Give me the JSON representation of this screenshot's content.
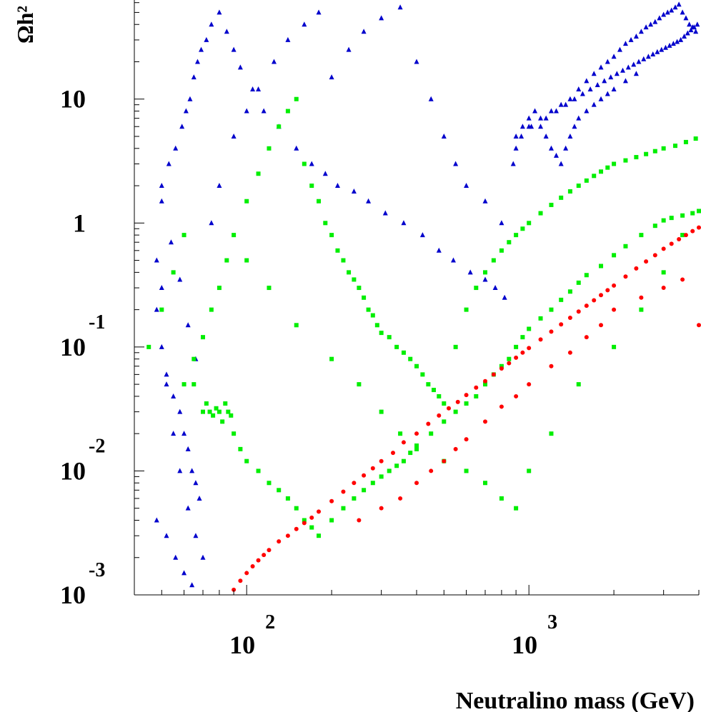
{
  "chart_data": {
    "type": "scatter",
    "title": "",
    "xlabel": "Neutralino mass (GeV)",
    "ylabel": "Ωh²",
    "x_scale": "log",
    "y_scale": "log",
    "xlim": [
      40,
      4000
    ],
    "ylim": [
      0.001,
      63
    ],
    "x_ticks": [
      {
        "base": "10",
        "exp": "2",
        "value": 100
      },
      {
        "base": "10",
        "exp": "3",
        "value": 1000
      }
    ],
    "y_ticks": [
      {
        "base": "10",
        "exp": "-3",
        "value": 0.001
      },
      {
        "base": "10",
        "exp": "-2",
        "value": 0.01
      },
      {
        "base": "10",
        "exp": "-1",
        "value": 0.1
      },
      {
        "base": "1",
        "exp": "",
        "value": 1
      },
      {
        "base": "10",
        "exp": "",
        "value": 10
      }
    ],
    "grid": false,
    "legend": "none",
    "series": [
      {
        "marker": "triangle",
        "color": "#0000cc",
        "x": [
          48,
          50,
          52,
          55,
          58,
          62,
          66,
          70,
          75,
          80,
          90,
          100,
          110,
          125,
          140,
          160,
          180,
          200,
          230,
          260,
          300,
          350,
          400,
          450,
          500,
          550,
          600,
          700,
          800,
          900,
          1000,
          1100,
          1200,
          1300,
          1400,
          1500,
          1600,
          1700,
          1800,
          1900,
          2000,
          2100,
          2200,
          2300,
          2400,
          2500,
          2600,
          2700,
          2800,
          2900,
          3000,
          3100,
          3200,
          3300,
          3400,
          3500,
          3600,
          3700,
          3800,
          3900,
          48,
          50,
          52,
          55,
          58,
          60,
          62,
          64,
          66,
          68,
          50,
          53,
          56,
          59,
          61,
          63,
          65,
          67,
          69,
          72,
          75,
          80,
          85,
          90,
          95,
          105,
          115,
          130,
          150,
          170,
          190,
          210,
          240,
          270,
          310,
          360,
          420,
          480,
          540,
          620,
          700,
          760,
          820,
          880,
          940,
          1020,
          1150,
          1250,
          1350,
          1450,
          1550,
          1650,
          1750,
          1850,
          1950,
          2050,
          2150,
          2250,
          2350,
          2450,
          2550,
          2650,
          2750,
          2850,
          2950,
          3050,
          3150,
          3250,
          3350,
          3450,
          3550,
          3650,
          3750,
          3850,
          3950,
          900,
          950,
          1000,
          1050,
          1100,
          1150,
          1200,
          1250,
          1300,
          1350,
          1400,
          1450,
          1500,
          1600,
          1700,
          1800,
          1900,
          2000,
          2200,
          2400,
          48,
          52,
          56,
          60,
          64,
          50,
          54,
          58,
          62,
          66
        ],
        "y": [
          0.5,
          0.3,
          0.05,
          0.02,
          0.01,
          0.005,
          0.003,
          0.002,
          1,
          2,
          5,
          8,
          12,
          20,
          30,
          40,
          50,
          15,
          25,
          35,
          45,
          55,
          20,
          10,
          5,
          3,
          2,
          1.5,
          1,
          4,
          6,
          7,
          8,
          9,
          10,
          12,
          14,
          16,
          18,
          20,
          22,
          25,
          28,
          30,
          32,
          35,
          38,
          40,
          42,
          45,
          48,
          50,
          52,
          55,
          58,
          50,
          45,
          40,
          38,
          35,
          0.2,
          0.1,
          0.06,
          0.04,
          0.03,
          0.02,
          0.015,
          0.01,
          0.008,
          0.006,
          2,
          3,
          4,
          6,
          8,
          10,
          15,
          20,
          25,
          30,
          40,
          50,
          35,
          25,
          18,
          12,
          8,
          6,
          4,
          3,
          2.5,
          2,
          1.8,
          1.5,
          1.2,
          1,
          0.8,
          0.6,
          0.5,
          0.4,
          0.35,
          0.3,
          0.25,
          3,
          5,
          6,
          7,
          8,
          9,
          10,
          11,
          12,
          13,
          14,
          15,
          16,
          17,
          18,
          19,
          20,
          21,
          22,
          23,
          24,
          25,
          26,
          27,
          28,
          29,
          30,
          32,
          34,
          36,
          38,
          40,
          5,
          6,
          7,
          8,
          6,
          5,
          4,
          3.5,
          3,
          4,
          5,
          6,
          7,
          8,
          9,
          10,
          11,
          12,
          14,
          16,
          0.004,
          0.003,
          0.002,
          0.0015,
          0.0012,
          1.5,
          0.7,
          0.35,
          0.15,
          0.08
        ]
      },
      {
        "marker": "square",
        "color": "#00ee00",
        "x": [
          45,
          50,
          55,
          60,
          65,
          70,
          72,
          74,
          76,
          78,
          80,
          82,
          84,
          86,
          88,
          90,
          95,
          100,
          110,
          120,
          130,
          140,
          150,
          160,
          170,
          180,
          200,
          220,
          240,
          260,
          280,
          300,
          320,
          340,
          360,
          380,
          400,
          450,
          500,
          550,
          600,
          650,
          700,
          750,
          800,
          850,
          900,
          950,
          1000,
          1100,
          1200,
          1300,
          1400,
          1500,
          1600,
          1800,
          2000,
          2200,
          2500,
          2800,
          3000,
          3200,
          3500,
          3800,
          4000,
          60,
          65,
          70,
          75,
          80,
          85,
          90,
          100,
          110,
          120,
          130,
          140,
          150,
          160,
          170,
          180,
          190,
          200,
          210,
          220,
          230,
          240,
          250,
          260,
          270,
          280,
          290,
          300,
          320,
          340,
          360,
          380,
          400,
          420,
          440,
          460,
          480,
          500,
          550,
          600,
          650,
          700,
          750,
          800,
          850,
          900,
          950,
          1000,
          1100,
          1200,
          1300,
          1400,
          1500,
          1600,
          1700,
          1800,
          1900,
          2000,
          2200,
          2400,
          2600,
          2800,
          3000,
          3300,
          3600,
          3900,
          100,
          120,
          150,
          200,
          250,
          300,
          350,
          400,
          500,
          600,
          700,
          800,
          900,
          1000,
          1200,
          1500,
          2000,
          2500,
          3000,
          3500
        ],
        "y": [
          0.1,
          0.2,
          0.4,
          0.8,
          0.05,
          0.03,
          0.035,
          0.03,
          0.028,
          0.032,
          0.03,
          0.025,
          0.035,
          0.03,
          0.028,
          0.02,
          0.015,
          0.012,
          0.01,
          0.008,
          0.007,
          0.006,
          0.005,
          0.004,
          0.0035,
          0.003,
          0.004,
          0.005,
          0.006,
          0.007,
          0.008,
          0.009,
          0.01,
          0.011,
          0.012,
          0.014,
          0.016,
          0.02,
          0.025,
          0.03,
          0.035,
          0.04,
          0.05,
          0.06,
          0.07,
          0.08,
          0.1,
          0.12,
          0.14,
          0.17,
          0.2,
          0.24,
          0.28,
          0.33,
          0.38,
          0.45,
          0.55,
          0.65,
          0.8,
          0.95,
          1.05,
          1.1,
          1.15,
          1.2,
          1.25,
          0.05,
          0.08,
          0.12,
          0.2,
          0.3,
          0.5,
          0.8,
          1.5,
          2.5,
          4,
          6,
          8,
          10,
          3,
          2,
          1.5,
          1,
          0.8,
          0.6,
          0.5,
          0.4,
          0.35,
          0.3,
          0.25,
          0.2,
          0.18,
          0.15,
          0.13,
          0.12,
          0.1,
          0.09,
          0.08,
          0.07,
          0.06,
          0.05,
          0.045,
          0.04,
          0.035,
          0.1,
          0.2,
          0.3,
          0.4,
          0.5,
          0.6,
          0.7,
          0.8,
          0.9,
          1,
          1.2,
          1.4,
          1.6,
          1.8,
          2,
          2.2,
          2.4,
          2.6,
          2.8,
          3,
          3.2,
          3.4,
          3.6,
          3.8,
          4,
          4.2,
          4.5,
          4.8,
          0.5,
          0.3,
          0.15,
          0.08,
          0.05,
          0.03,
          0.02,
          0.015,
          0.012,
          0.01,
          0.008,
          0.006,
          0.005,
          0.01,
          0.02,
          0.05,
          0.1,
          0.2,
          0.4,
          0.8
        ]
      },
      {
        "marker": "circle",
        "color": "#ff0000",
        "x": [
          90,
          95,
          100,
          105,
          110,
          115,
          120,
          130,
          140,
          150,
          160,
          170,
          180,
          200,
          220,
          240,
          260,
          280,
          300,
          330,
          360,
          400,
          440,
          480,
          520,
          560,
          600,
          650,
          700,
          750,
          800,
          850,
          900,
          950,
          1000,
          1100,
          1200,
          1300,
          1400,
          1500,
          1600,
          1700,
          1800,
          1900,
          2000,
          2200,
          2400,
          2600,
          2800,
          3000,
          3200,
          3400,
          3600,
          3800,
          4000,
          250,
          300,
          350,
          400,
          450,
          500,
          550,
          600,
          700,
          800,
          900,
          1000,
          1200,
          1400,
          1600,
          1800,
          2000,
          2500,
          3000,
          3500,
          4000
        ],
        "y": [
          0.0011,
          0.0013,
          0.0015,
          0.0017,
          0.0019,
          0.0021,
          0.0023,
          0.0027,
          0.003,
          0.0034,
          0.0038,
          0.0042,
          0.0047,
          0.0057,
          0.0068,
          0.008,
          0.0092,
          0.0105,
          0.012,
          0.014,
          0.017,
          0.02,
          0.024,
          0.028,
          0.032,
          0.036,
          0.041,
          0.047,
          0.053,
          0.06,
          0.067,
          0.074,
          0.082,
          0.09,
          0.098,
          0.115,
          0.133,
          0.152,
          0.172,
          0.193,
          0.215,
          0.238,
          0.262,
          0.287,
          0.313,
          0.37,
          0.43,
          0.49,
          0.55,
          0.62,
          0.68,
          0.74,
          0.8,
          0.86,
          0.92,
          0.004,
          0.005,
          0.006,
          0.008,
          0.01,
          0.012,
          0.015,
          0.018,
          0.025,
          0.033,
          0.04,
          0.05,
          0.07,
          0.09,
          0.12,
          0.15,
          0.2,
          0.25,
          0.3,
          0.35,
          0.15
        ]
      }
    ]
  }
}
